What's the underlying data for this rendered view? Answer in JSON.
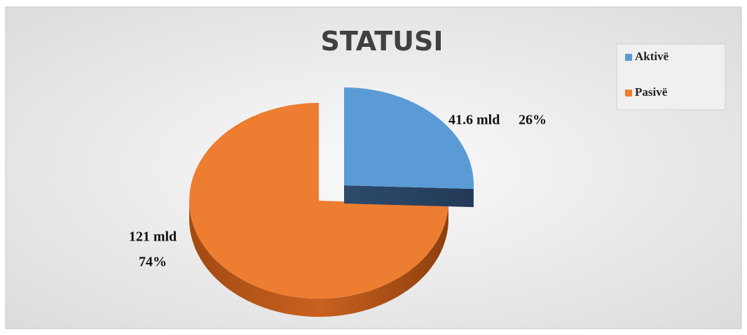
{
  "chart_data": {
    "type": "pie3d",
    "title": "STATUSI",
    "categories": [
      "Aktivë",
      "Pasivë"
    ],
    "values": [
      41.6,
      121
    ],
    "value_labels": [
      "41.6 mld",
      "121 mld"
    ],
    "percent_labels": [
      "26%",
      "74%"
    ],
    "colors": [
      "#5b9bd5",
      "#ed7d31"
    ],
    "exploded": [
      true,
      false
    ],
    "legend": "top-right"
  }
}
